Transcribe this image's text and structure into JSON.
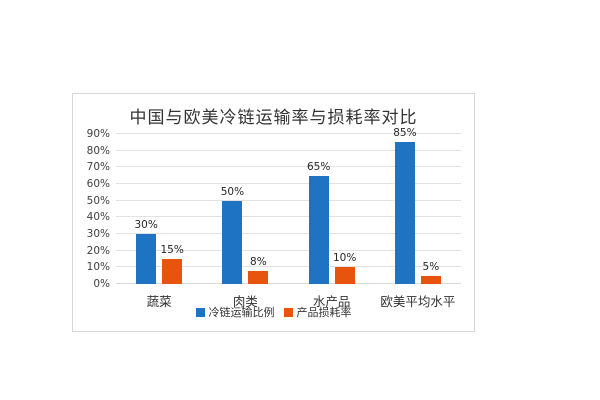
{
  "chart_data": {
    "type": "bar",
    "title": "中国与欧美冷链运输率与损耗率对比",
    "categories": [
      "蔬菜",
      "肉类",
      "水产品",
      "欧美平均水平"
    ],
    "series": [
      {
        "name": "冷链运输比例",
        "color": "#1e74c2",
        "values": [
          30,
          50,
          65,
          85
        ],
        "labels": [
          "30%",
          "50%",
          "65%",
          "85%"
        ]
      },
      {
        "name": "产品损耗率",
        "color": "#e6540e",
        "values": [
          15,
          8,
          10,
          5
        ],
        "labels": [
          "15%",
          "8%",
          "10%",
          "5%"
        ]
      }
    ],
    "xlabel": "",
    "ylabel": "",
    "ylim": [
      0,
      90
    ],
    "ytick_step": 10,
    "ytick_labels": [
      "0%",
      "10%",
      "20%",
      "30%",
      "40%",
      "50%",
      "60%",
      "70%",
      "80%",
      "90%"
    ],
    "grid": "horizontal",
    "legend_position": "bottom",
    "grid_color": "#e2e2e2",
    "border_color": "#d6d6d6",
    "background_color": "#ffffff"
  }
}
